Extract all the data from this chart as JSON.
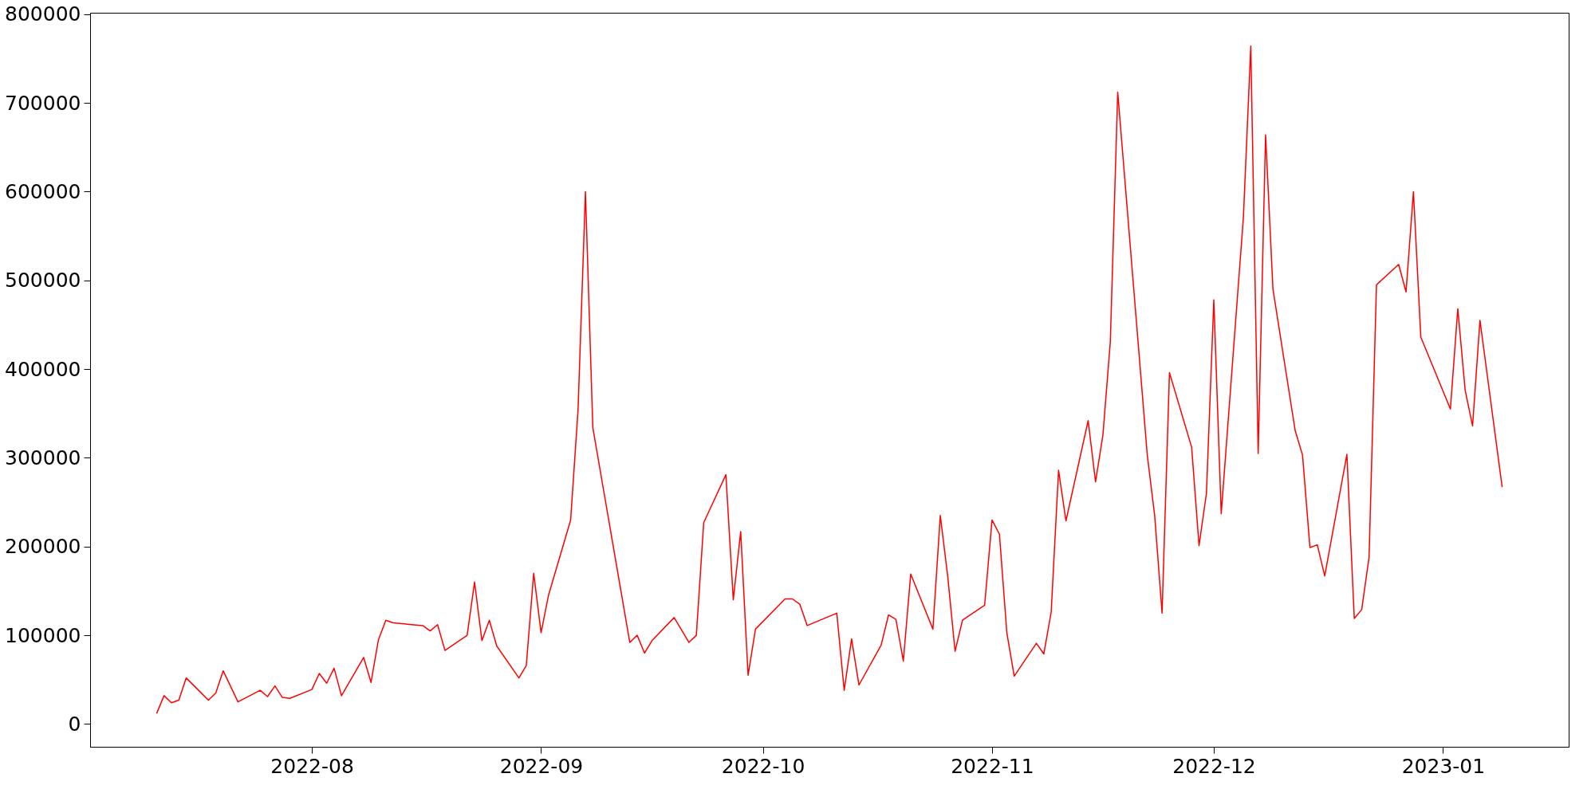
{
  "chart_data": {
    "type": "line",
    "x": [
      "2022-07-11",
      "2022-07-12",
      "2022-07-13",
      "2022-07-14",
      "2022-07-15",
      "2022-07-18",
      "2022-07-19",
      "2022-07-20",
      "2022-07-22",
      "2022-07-25",
      "2022-07-26",
      "2022-07-27",
      "2022-07-28",
      "2022-07-29",
      "2022-08-01",
      "2022-08-02",
      "2022-08-03",
      "2022-08-04",
      "2022-08-05",
      "2022-08-08",
      "2022-08-09",
      "2022-08-10",
      "2022-08-11",
      "2022-08-12",
      "2022-08-16",
      "2022-08-17",
      "2022-08-18",
      "2022-08-19",
      "2022-08-22",
      "2022-08-23",
      "2022-08-24",
      "2022-08-25",
      "2022-08-26",
      "2022-08-29",
      "2022-08-30",
      "2022-08-31",
      "2022-09-01",
      "2022-09-02",
      "2022-09-05",
      "2022-09-06",
      "2022-09-07",
      "2022-09-08",
      "2022-09-13",
      "2022-09-14",
      "2022-09-15",
      "2022-09-16",
      "2022-09-19",
      "2022-09-20",
      "2022-09-21",
      "2022-09-22",
      "2022-09-23",
      "2022-09-26",
      "2022-09-27",
      "2022-09-28",
      "2022-09-29",
      "2022-09-30",
      "2022-10-04",
      "2022-10-05",
      "2022-10-06",
      "2022-10-07",
      "2022-10-11",
      "2022-10-12",
      "2022-10-13",
      "2022-10-14",
      "2022-10-17",
      "2022-10-18",
      "2022-10-19",
      "2022-10-20",
      "2022-10-21",
      "2022-10-24",
      "2022-10-25",
      "2022-10-26",
      "2022-10-27",
      "2022-10-28",
      "2022-10-31",
      "2022-11-01",
      "2022-11-02",
      "2022-11-03",
      "2022-11-04",
      "2022-11-07",
      "2022-11-08",
      "2022-11-09",
      "2022-11-10",
      "2022-11-11",
      "2022-11-14",
      "2022-11-15",
      "2022-11-16",
      "2022-11-17",
      "2022-11-18",
      "2022-11-22",
      "2022-11-23",
      "2022-11-24",
      "2022-11-25",
      "2022-11-28",
      "2022-11-29",
      "2022-11-30",
      "2022-12-01",
      "2022-12-02",
      "2022-12-05",
      "2022-12-06",
      "2022-12-07",
      "2022-12-08",
      "2022-12-09",
      "2022-12-12",
      "2022-12-13",
      "2022-12-14",
      "2022-12-15",
      "2022-12-16",
      "2022-12-19",
      "2022-12-20",
      "2022-12-21",
      "2022-12-22",
      "2022-12-23",
      "2022-12-26",
      "2022-12-27",
      "2022-12-28",
      "2022-12-29",
      "2023-01-02",
      "2023-01-03",
      "2023-01-04",
      "2023-01-05",
      "2023-01-06",
      "2023-01-09"
    ],
    "series": [
      {
        "color": "#ff0000",
        "values": [
          12000,
          32000,
          24000,
          27000,
          52000,
          27000,
          35000,
          60000,
          25000,
          38000,
          31000,
          43000,
          30000,
          29000,
          39000,
          57000,
          46000,
          63000,
          32000,
          75000,
          47000,
          95000,
          117000,
          114000,
          111000,
          105000,
          112000,
          83000,
          100000,
          160000,
          94000,
          117000,
          88000,
          52000,
          66000,
          170000,
          103000,
          145000,
          230000,
          354000,
          600000,
          334000,
          92000,
          100000,
          80000,
          94000,
          120000,
          106000,
          92000,
          100000,
          227000,
          281000,
          140000,
          217000,
          55000,
          107000,
          141000,
          141000,
          135000,
          111000,
          125000,
          38000,
          96000,
          44000,
          89000,
          123000,
          118000,
          71000,
          169000,
          107000,
          235000,
          167000,
          82000,
          117000,
          134000,
          230000,
          214000,
          103000,
          54000,
          91000,
          79000,
          126000,
          286000,
          229000,
          342000,
          273000,
          326000,
          431000,
          712000,
          303000,
          235000,
          125000,
          396000,
          312000,
          201000,
          260000,
          478000,
          237000,
          571000,
          764000,
          305000,
          664000,
          490000,
          331000,
          303000,
          199000,
          202000,
          167000,
          304000,
          119000,
          129000,
          188000,
          495000,
          518000,
          487000,
          600000,
          436000,
          355000,
          468000,
          376000,
          336000,
          455000,
          267000
        ]
      }
    ],
    "xlim": [
      "2022-07-02",
      "2023-01-18"
    ],
    "xticks": [
      {
        "value": "2022-08-01",
        "label": "2022-08"
      },
      {
        "value": "2022-09-01",
        "label": "2022-09"
      },
      {
        "value": "2022-10-01",
        "label": "2022-10"
      },
      {
        "value": "2022-11-01",
        "label": "2022-11"
      },
      {
        "value": "2022-12-01",
        "label": "2022-12"
      },
      {
        "value": "2023-01-01",
        "label": "2023-01"
      }
    ],
    "ylim": [
      -25600,
      801600
    ],
    "yticks": [
      0,
      100000,
      200000,
      300000,
      400000,
      500000,
      600000,
      700000,
      800000
    ],
    "grid": false,
    "legend": false,
    "line_style": "solid",
    "marker": "none"
  }
}
